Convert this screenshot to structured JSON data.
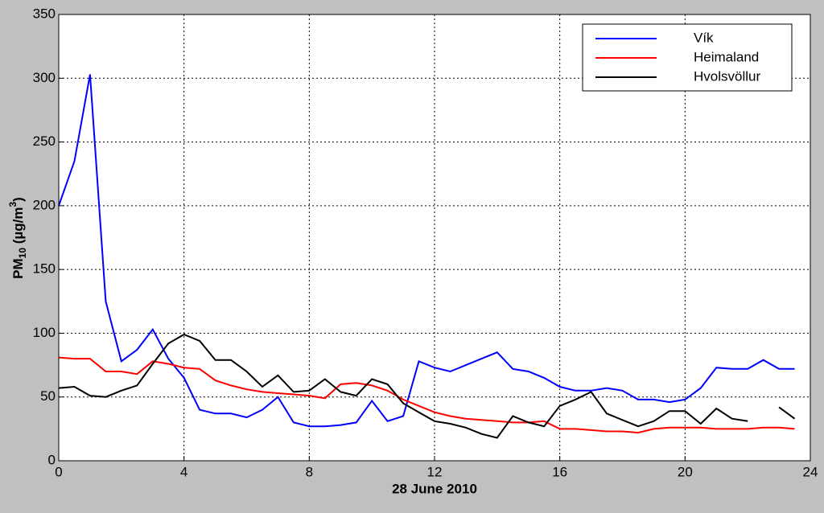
{
  "chart_data": {
    "type": "line",
    "xlabel": "28 June 2010",
    "ylabel": [
      "PM",
      "10",
      " (µg/m",
      "3",
      ")"
    ],
    "x": [
      0,
      0.5,
      1,
      1.5,
      2,
      2.5,
      3,
      3.5,
      4,
      4.5,
      5,
      5.5,
      6,
      6.5,
      7,
      7.5,
      8,
      8.5,
      9,
      9.5,
      10,
      10.5,
      11,
      11.5,
      12,
      12.5,
      13,
      13.5,
      14,
      14.5,
      15,
      15.5,
      16,
      16.5,
      17,
      17.5,
      18,
      18.5,
      19,
      19.5,
      20,
      20.5,
      21,
      21.5,
      22,
      22.5,
      23,
      23.5
    ],
    "series": [
      {
        "name": "Vík",
        "color": "#0000ff",
        "values": [
          200,
          235,
          303,
          125,
          78,
          87,
          103,
          80,
          65,
          40,
          37,
          37,
          34,
          40,
          50,
          30,
          27,
          27,
          28,
          30,
          47,
          31,
          35,
          78,
          73,
          70,
          75,
          80,
          85,
          72,
          70,
          65,
          58,
          55,
          55,
          57,
          55,
          48,
          48,
          46,
          48,
          57,
          73,
          72,
          72,
          79,
          72,
          72
        ]
      },
      {
        "name": "Heimaland",
        "color": "#ff0000",
        "values": [
          81,
          80,
          80,
          70,
          70,
          68,
          78,
          76,
          73,
          72,
          63,
          59,
          56,
          54,
          53,
          52,
          51,
          49,
          60,
          61,
          59,
          55,
          48,
          43,
          38,
          35,
          33,
          32,
          31,
          30,
          30,
          31,
          25,
          25,
          24,
          23,
          23,
          22,
          25,
          26,
          26,
          26,
          25,
          25,
          25,
          26,
          26,
          25
        ]
      },
      {
        "name": "Hvolsvöllur",
        "color": "#000000",
        "values": [
          57,
          58,
          51,
          50,
          55,
          59,
          76,
          92,
          99,
          94,
          79,
          79,
          70,
          58,
          67,
          54,
          55,
          64,
          54,
          51,
          64,
          60,
          45,
          38,
          31,
          29,
          26,
          21,
          18,
          35,
          30,
          27,
          43,
          48,
          54,
          37,
          32,
          27,
          31,
          39,
          39,
          29,
          41,
          33,
          31,
          null,
          42,
          33
        ]
      }
    ],
    "xlim": [
      0,
      24
    ],
    "xticks": [
      0,
      4,
      8,
      12,
      16,
      20,
      24
    ],
    "ylim": [
      0,
      350
    ],
    "yticks": [
      0,
      50,
      100,
      150,
      200,
      250,
      300,
      350
    ],
    "grid": true,
    "legend": "upper-right"
  }
}
